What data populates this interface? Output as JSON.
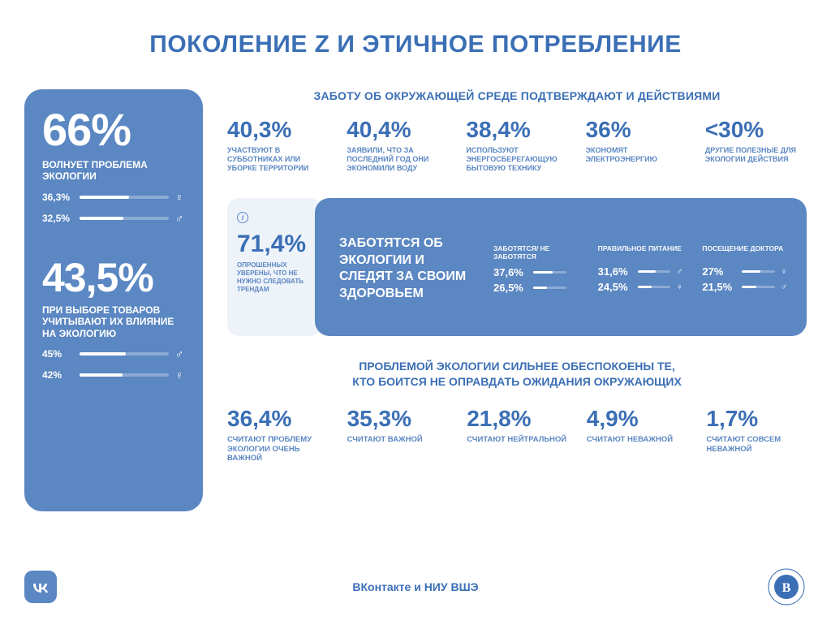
{
  "colors": {
    "primary": "#5b87c2",
    "primary_dark": "#3b6fb5",
    "light_bg": "#eef3fa",
    "white": "#ffffff"
  },
  "title": "ПОКОЛЕНИЕ Z И ЭТИЧНОЕ ПОТРЕБЛЕНИЕ",
  "sidebar": {
    "block1": {
      "value": "66%",
      "desc": "ВОЛНУЕТ ПРОБЛЕМА ЭКОЛОГИИ",
      "bars": [
        {
          "label": "36,3%",
          "fill": 55,
          "gender": "♀"
        },
        {
          "label": "32,5%",
          "fill": 49,
          "gender": "♂"
        }
      ]
    },
    "block2": {
      "value": "43,5%",
      "desc": "ПРИ ВЫБОРЕ ТОВАРОВ УЧИТЫВАЮТ ИХ ВЛИЯНИЕ НА ЭКОЛОГИЮ",
      "bars": [
        {
          "label": "45%",
          "fill": 52,
          "gender": "♂"
        },
        {
          "label": "42%",
          "fill": 48,
          "gender": "♀"
        }
      ]
    }
  },
  "section_a": {
    "title": "ЗАБОТУ ОБ ОКРУЖАЮЩЕЙ СРЕДЕ ПОДТВЕРЖДАЮТ И ДЕЙСТВИЯМИ",
    "stats": [
      {
        "v": "40,3%",
        "d": "УЧАСТВУЮТ В СУББОТНИКАХ ИЛИ УБОРКЕ ТЕРРИТОРИИ"
      },
      {
        "v": "40,4%",
        "d": "ЗАЯВИЛИ, ЧТО ЗА ПОСЛЕДНИЙ ГОД ОНИ ЭКОНОМИЛИ ВОДУ"
      },
      {
        "v": "38,4%",
        "d": "ИСПОЛЬЗУЮТ ЭНЕРГОСБЕРЕГАЮЩУЮ БЫТОВУЮ ТЕХНИКУ"
      },
      {
        "v": "36%",
        "d": "ЭКОНОМЯТ ЭЛЕКТРОЭНЕРГИЮ"
      },
      {
        "v": "<30%",
        "d": "ДРУГИЕ ПОЛЕЗНЫЕ ДЛЯ ЭКОЛОГИИ ДЕЙСТВИЯ"
      }
    ]
  },
  "mid": {
    "light": {
      "v": "71,4%",
      "d": "ОПРОШЕННЫХ УВЕРЕНЫ, ЧТО НЕ НУЖНО СЛЕДОВАТЬ ТРЕНДАМ"
    },
    "blue": {
      "lead": "ЗАБОТЯТСЯ ОБ ЭКОЛОГИИ И СЛЕДЯТ ЗА СВОИМ ЗДОРОВЬЕМ",
      "cols": [
        {
          "h": "ЗАБОТЯТСЯ/ НЕ ЗАБОТЯТСЯ",
          "rows": [
            {
              "p": "37,6%",
              "fill": 60,
              "g": ""
            },
            {
              "p": "26,5%",
              "fill": 42,
              "g": ""
            }
          ]
        },
        {
          "h": "ПРАВИЛЬНОЕ ПИТАНИЕ",
          "rows": [
            {
              "p": "31,6%",
              "fill": 56,
              "g": "♂"
            },
            {
              "p": "24,5%",
              "fill": 43,
              "g": "♀"
            }
          ]
        },
        {
          "h": "ПОСЕЩЕНИЕ ДОКТОРА",
          "rows": [
            {
              "p": "27%",
              "fill": 55,
              "g": "♀"
            },
            {
              "p": "21,5%",
              "fill": 44,
              "g": "♂"
            }
          ]
        }
      ]
    }
  },
  "section_b": {
    "title_l1": "ПРОБЛЕМОЙ ЭКОЛОГИИ СИЛЬНЕЕ ОБЕСПОКОЕНЫ ТЕ,",
    "title_l2": "КТО БОИТСЯ НЕ ОПРАВДАТЬ ОЖИДАНИЯ ОКРУЖАЮЩИХ",
    "stats": [
      {
        "v": "36,4%",
        "d": "СЧИТАЮТ ПРОБЛЕМУ ЭКОЛОГИИ ОЧЕНЬ ВАЖНОЙ"
      },
      {
        "v": "35,3%",
        "d": "СЧИТАЮТ ВАЖНОЙ"
      },
      {
        "v": "21,8%",
        "d": "СЧИТАЮТ НЕЙТРАЛЬНОЙ"
      },
      {
        "v": "4,9%",
        "d": "СЧИТАЮТ НЕВАЖНОЙ"
      },
      {
        "v": "1,7%",
        "d": "СЧИТАЮТ СОВСЕМ НЕВАЖНОЙ"
      }
    ]
  },
  "footer": {
    "text": "ВКонтакте и НИУ ВШЭ"
  }
}
